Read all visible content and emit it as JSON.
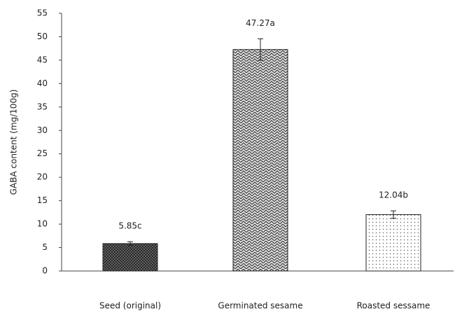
{
  "chart_data": {
    "type": "bar",
    "y_label": "GABA content (mg/100g)",
    "categories": [
      "Seed (original)",
      "Germinated sesame",
      "Roasted sessame"
    ],
    "values": [
      5.85,
      47.27,
      12.04
    ],
    "value_labels": [
      "5.85c",
      "47.27a",
      "12.04b"
    ],
    "errors": [
      0.4,
      2.3,
      0.8
    ],
    "ylim": [
      0,
      55
    ],
    "yticks": [
      0,
      5,
      10,
      15,
      20,
      25,
      30,
      35,
      40,
      45,
      50,
      55
    ],
    "grid": false
  }
}
